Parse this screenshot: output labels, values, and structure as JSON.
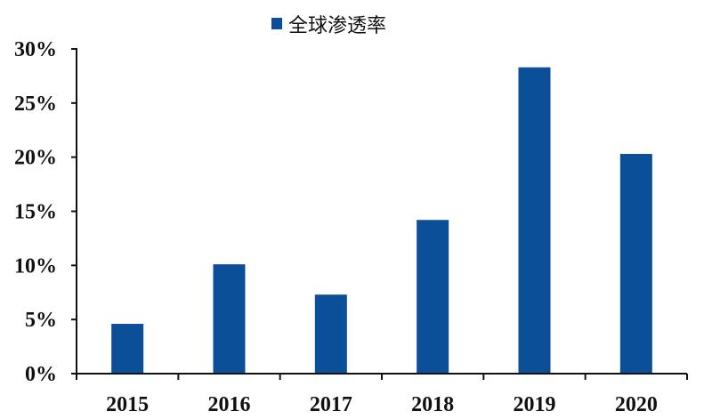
{
  "chart_data": {
    "type": "bar",
    "title": "",
    "xlabel": "",
    "ylabel": "",
    "categories": [
      "2015",
      "2016",
      "2017",
      "2018",
      "2019",
      "2020"
    ],
    "series": [
      {
        "name": "全球渗透率",
        "values": [
          4.6,
          10.1,
          7.3,
          14.2,
          28.3,
          20.3
        ],
        "color": "#0b4f98"
      }
    ],
    "ylim": [
      0,
      30
    ],
    "yticks": [
      0,
      5,
      10,
      15,
      20,
      25,
      30
    ],
    "ytick_labels": [
      "0%",
      "5%",
      "10%",
      "15%",
      "20%",
      "25%",
      "30%"
    ],
    "grid": false,
    "legend": "top-center"
  }
}
